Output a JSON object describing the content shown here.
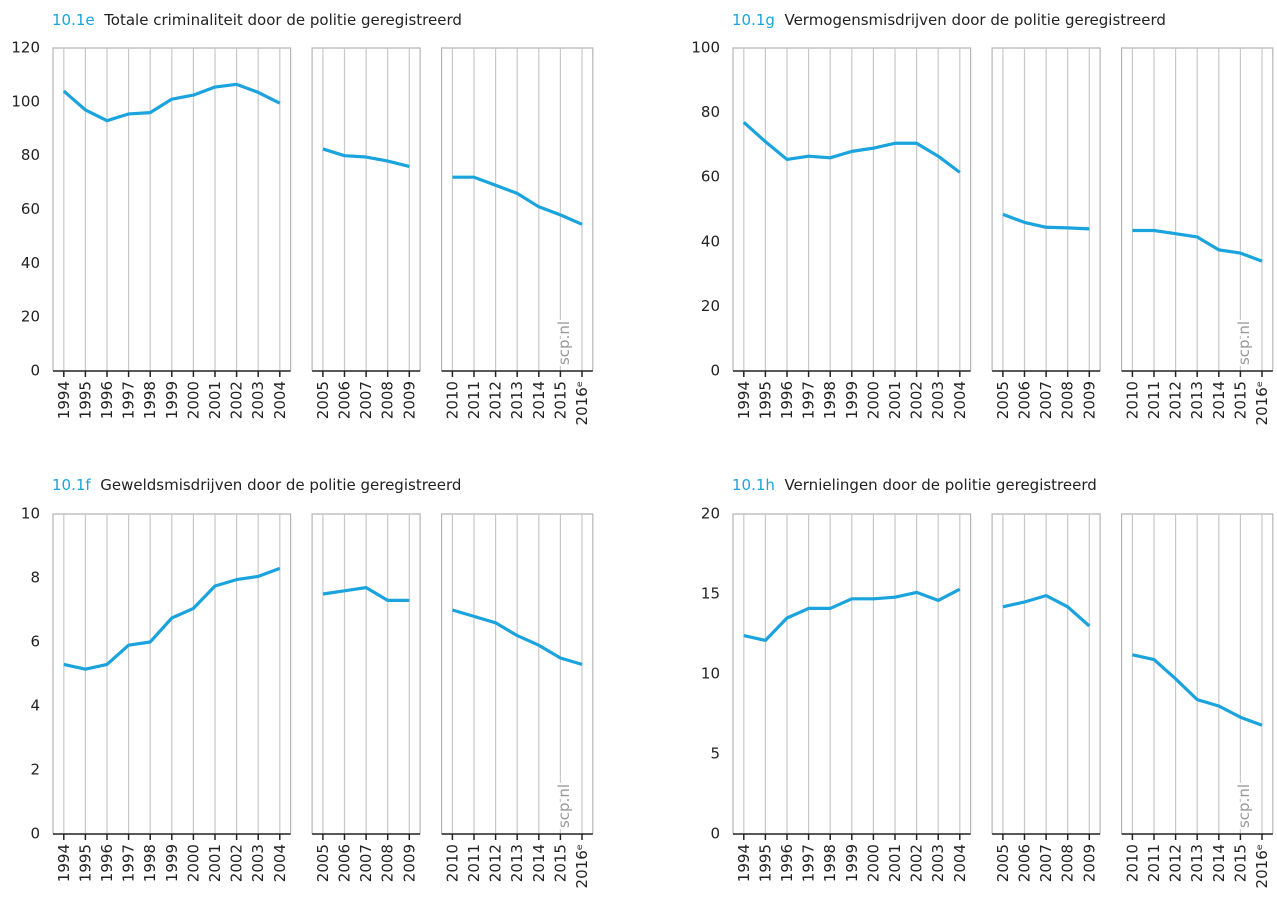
{
  "chart_data": [
    {
      "type": "line",
      "label": "10.1e",
      "title": "Totale criminaliteit door de politie geregistreerd",
      "color": "#1aa3dc",
      "ylim": [
        0,
        120
      ],
      "yticks": [
        0,
        20,
        40,
        60,
        80,
        100,
        120
      ],
      "watermark": "scp.nl",
      "panels": [
        {
          "categories": [
            "1994",
            "1995",
            "1996",
            "1997",
            "1998",
            "1999",
            "2000",
            "2001",
            "2002",
            "2003",
            "2004"
          ],
          "values": [
            104,
            97,
            93,
            95.5,
            96,
            101,
            102.5,
            105.5,
            106.5,
            103.5,
            99.5
          ]
        },
        {
          "categories": [
            "2005",
            "2006",
            "2007",
            "2008",
            "2009"
          ],
          "values": [
            82.5,
            80,
            79.5,
            78,
            76
          ]
        },
        {
          "categories": [
            "2010",
            "2011",
            "2012",
            "2013",
            "2014",
            "2015",
            "2016ᵉ"
          ],
          "values": [
            72,
            72,
            69,
            66,
            61,
            58,
            54.5
          ]
        }
      ]
    },
    {
      "type": "line",
      "label": "10.1f",
      "title": "Geweldsmisdrijven door de politie geregistreerd",
      "color": "#1aa3dc",
      "ylim": [
        0,
        10
      ],
      "yticks": [
        0,
        2,
        4,
        6,
        8,
        10
      ],
      "watermark": "scp.nl",
      "panels": [
        {
          "categories": [
            "1994",
            "1995",
            "1996",
            "1997",
            "1998",
            "1999",
            "2000",
            "2001",
            "2002",
            "2003",
            "2004"
          ],
          "values": [
            5.3,
            5.15,
            5.3,
            5.9,
            6,
            6.75,
            7.05,
            7.75,
            7.95,
            8.05,
            8.3
          ]
        },
        {
          "categories": [
            "2005",
            "2006",
            "2007",
            "2008",
            "2009"
          ],
          "values": [
            7.5,
            7.6,
            7.7,
            7.3,
            7.3
          ]
        },
        {
          "categories": [
            "2010",
            "2011",
            "2012",
            "2013",
            "2014",
            "2015",
            "2016ᵉ"
          ],
          "values": [
            7,
            6.8,
            6.6,
            6.2,
            5.9,
            5.5,
            5.3
          ]
        }
      ]
    },
    {
      "type": "line",
      "label": "10.1g",
      "title": "Vermogensmisdrijven door de politie geregistreerd",
      "color": "#1aa3dc",
      "ylim": [
        0,
        100
      ],
      "yticks": [
        0,
        20,
        40,
        60,
        80,
        100
      ],
      "watermark": "scp.nl",
      "panels": [
        {
          "categories": [
            "1994",
            "1995",
            "1996",
            "1997",
            "1998",
            "1999",
            "2000",
            "2001",
            "2002",
            "2003",
            "2004"
          ],
          "values": [
            77,
            71,
            65.5,
            66.5,
            66,
            68,
            69,
            70.5,
            70.5,
            66.5,
            61.5
          ]
        },
        {
          "categories": [
            "2005",
            "2006",
            "2007",
            "2008",
            "2009"
          ],
          "values": [
            48.5,
            46,
            44.5,
            44.3,
            44
          ]
        },
        {
          "categories": [
            "2010",
            "2011",
            "2012",
            "2013",
            "2014",
            "2015",
            "2016ᵉ"
          ],
          "values": [
            43.5,
            43.5,
            42.5,
            41.5,
            37.5,
            36.5,
            34
          ]
        }
      ]
    },
    {
      "type": "line",
      "label": "10.1h",
      "title": "Vernielingen door de politie geregistreerd",
      "color": "#1aa3dc",
      "ylim": [
        0,
        20
      ],
      "yticks": [
        0,
        5,
        10,
        15,
        20
      ],
      "watermark": "scp.nl",
      "panels": [
        {
          "categories": [
            "1994",
            "1995",
            "1996",
            "1997",
            "1998",
            "1999",
            "2000",
            "2001",
            "2002",
            "2003",
            "2004"
          ],
          "values": [
            12.4,
            12.1,
            13.5,
            14.1,
            14.1,
            14.7,
            14.7,
            14.8,
            15.1,
            14.6,
            15.3
          ]
        },
        {
          "categories": [
            "2005",
            "2006",
            "2007",
            "2008",
            "2009"
          ],
          "values": [
            14.2,
            14.5,
            14.9,
            14.2,
            13
          ]
        },
        {
          "categories": [
            "2010",
            "2011",
            "2012",
            "2013",
            "2014",
            "2015",
            "2016ᵉ"
          ],
          "values": [
            11.2,
            10.9,
            9.7,
            8.4,
            8,
            7.3,
            6.8
          ]
        }
      ]
    }
  ]
}
